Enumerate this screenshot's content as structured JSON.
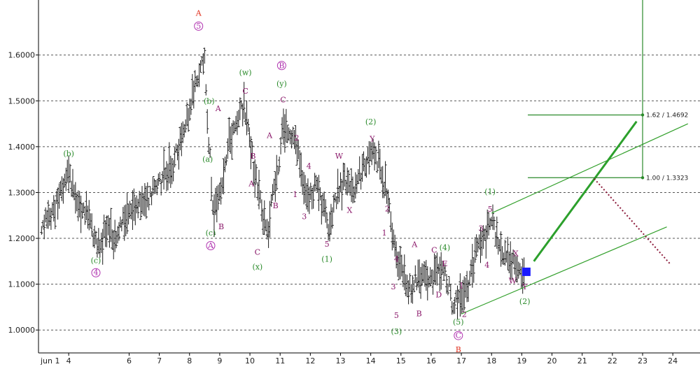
{
  "colors": {
    "price": "#1a1a1a",
    "grid": "#555555",
    "channel": "#33a02c",
    "projection": "#2ca02c",
    "bear_projection": "#8b1a3a",
    "fib": "#2a8a2a",
    "marker": "#1a1aff",
    "label_purple": "#8b1a6b",
    "label_green": "#2a8a2a",
    "label_red": "#e0301e",
    "label_circle": "#b033b0"
  },
  "chart_data": {
    "type": "ohlc",
    "ylim": [
      0.95,
      1.72
    ],
    "yticks": [
      "1.0000",
      "1.1000",
      "1.2000",
      "1.3000",
      "1.4000",
      "1.5000",
      "1.6000"
    ],
    "ytick_values": [
      1.0,
      1.1,
      1.2,
      1.3,
      1.4,
      1.5,
      1.6
    ],
    "xlim": [
      2003.0,
      2024.9
    ],
    "xticks": [
      "4",
      "6",
      "7",
      "8",
      "9",
      "10",
      "11",
      "12",
      "13",
      "14",
      "15",
      "16",
      "17",
      "18",
      "19",
      "20",
      "21",
      "22",
      "23",
      "24"
    ],
    "xtick_values": [
      2004,
      2006,
      2007,
      2008,
      2009,
      2010,
      2011,
      2012,
      2013,
      2014,
      2015,
      2016,
      2017,
      2018,
      2019,
      2020,
      2021,
      2022,
      2023,
      2024
    ],
    "x_start_label": "jun 1",
    "price_path": [
      [
        2003.1,
        1.22
      ],
      [
        2003.5,
        1.26
      ],
      [
        2004.0,
        1.35
      ],
      [
        2004.2,
        1.29
      ],
      [
        2004.5,
        1.26
      ],
      [
        2004.8,
        1.22
      ],
      [
        2005.0,
        1.18
      ],
      [
        2005.3,
        1.23
      ],
      [
        2005.6,
        1.19
      ],
      [
        2005.8,
        1.24
      ],
      [
        2006.2,
        1.27
      ],
      [
        2006.6,
        1.28
      ],
      [
        2007.0,
        1.32
      ],
      [
        2007.5,
        1.37
      ],
      [
        2007.9,
        1.45
      ],
      [
        2008.2,
        1.55
      ],
      [
        2008.5,
        1.59
      ],
      [
        2008.6,
        1.45
      ],
      [
        2008.8,
        1.25
      ],
      [
        2009.0,
        1.3
      ],
      [
        2009.2,
        1.38
      ],
      [
        2009.5,
        1.45
      ],
      [
        2009.8,
        1.49
      ],
      [
        2010.0,
        1.4
      ],
      [
        2010.2,
        1.33
      ],
      [
        2010.4,
        1.26
      ],
      [
        2010.6,
        1.21
      ],
      [
        2010.8,
        1.32
      ],
      [
        2011.0,
        1.38
      ],
      [
        2011.1,
        1.45
      ],
      [
        2011.4,
        1.43
      ],
      [
        2011.7,
        1.35
      ],
      [
        2011.9,
        1.28
      ],
      [
        2012.2,
        1.32
      ],
      [
        2012.4,
        1.27
      ],
      [
        2012.6,
        1.23
      ],
      [
        2012.9,
        1.3
      ],
      [
        2013.2,
        1.33
      ],
      [
        2013.5,
        1.31
      ],
      [
        2013.8,
        1.36
      ],
      [
        2014.1,
        1.38
      ],
      [
        2014.3,
        1.37
      ],
      [
        2014.6,
        1.27
      ],
      [
        2014.8,
        1.18
      ],
      [
        2015.0,
        1.12
      ],
      [
        2015.3,
        1.09
      ],
      [
        2015.6,
        1.12
      ],
      [
        2015.9,
        1.1
      ],
      [
        2016.2,
        1.12
      ],
      [
        2016.4,
        1.14
      ],
      [
        2016.7,
        1.06
      ],
      [
        2016.9,
        1.06
      ],
      [
        2017.2,
        1.1
      ],
      [
        2017.5,
        1.17
      ],
      [
        2017.8,
        1.21
      ],
      [
        2018.0,
        1.24
      ],
      [
        2018.3,
        1.17
      ],
      [
        2018.6,
        1.15
      ],
      [
        2018.9,
        1.13
      ],
      [
        2019.1,
        1.12
      ]
    ],
    "channel_upper": [
      [
        2018.0,
        1.255
      ],
      [
        2024.5,
        1.45
      ]
    ],
    "channel_lower": [
      [
        2017.0,
        1.035
      ],
      [
        2023.8,
        1.225
      ]
    ],
    "projection_up": [
      [
        2019.4,
        1.15
      ],
      [
        2022.8,
        1.455
      ]
    ],
    "projection_down": [
      [
        2021.4,
        1.33
      ],
      [
        2023.9,
        1.145
      ]
    ],
    "marker": [
      2019.15,
      1.127
    ],
    "fib_vertical": [
      [
        2023.0,
        1.33
      ],
      [
        2023.0,
        1.72
      ]
    ],
    "fib_levels": [
      {
        "label": "1.62 / 1.4692",
        "value": 1.4692
      },
      {
        "label": "1.00 / 1.3323",
        "value": 1.3323
      }
    ],
    "wave_labels": [
      {
        "t": "(b)",
        "x": 2004.0,
        "y": 1.385,
        "c": "green",
        "s": "plain"
      },
      {
        "t": "(c)",
        "x": 2004.9,
        "y": 1.152,
        "c": "green",
        "s": "plain"
      },
      {
        "t": "4",
        "x": 2004.9,
        "y": 1.125,
        "c": "purple",
        "s": "circle"
      },
      {
        "t": "A",
        "x": 2008.3,
        "y": 1.692,
        "c": "red",
        "s": "plain"
      },
      {
        "t": "5",
        "x": 2008.3,
        "y": 1.663,
        "c": "purple",
        "s": "circle"
      },
      {
        "t": "(b)",
        "x": 2008.65,
        "y": 1.5,
        "c": "green",
        "s": "plain"
      },
      {
        "t": "A",
        "x": 2008.95,
        "y": 1.484,
        "c": "purple",
        "s": "plain"
      },
      {
        "t": "(a)",
        "x": 2008.6,
        "y": 1.373,
        "c": "green",
        "s": "plain"
      },
      {
        "t": "B",
        "x": 2009.05,
        "y": 1.226,
        "c": "purple",
        "s": "plain"
      },
      {
        "t": "(c)",
        "x": 2008.7,
        "y": 1.212,
        "c": "green",
        "s": "plain"
      },
      {
        "t": "A",
        "x": 2008.7,
        "y": 1.184,
        "c": "purple",
        "s": "circle"
      },
      {
        "t": "(w)",
        "x": 2009.85,
        "y": 1.562,
        "c": "green",
        "s": "plain"
      },
      {
        "t": "C",
        "x": 2009.85,
        "y": 1.522,
        "c": "purple",
        "s": "plain"
      },
      {
        "t": "B",
        "x": 2010.1,
        "y": 1.38,
        "c": "purple",
        "s": "plain"
      },
      {
        "t": "A",
        "x": 2010.05,
        "y": 1.32,
        "c": "purple",
        "s": "plain"
      },
      {
        "t": "C",
        "x": 2010.25,
        "y": 1.17,
        "c": "purple",
        "s": "plain"
      },
      {
        "t": "(x)",
        "x": 2010.25,
        "y": 1.138,
        "c": "green",
        "s": "plain"
      },
      {
        "t": "B",
        "x": 2011.05,
        "y": 1.577,
        "c": "purple",
        "s": "circle"
      },
      {
        "t": "(y)",
        "x": 2011.05,
        "y": 1.538,
        "c": "green",
        "s": "plain"
      },
      {
        "t": "C",
        "x": 2011.1,
        "y": 1.503,
        "c": "purple",
        "s": "plain"
      },
      {
        "t": "A",
        "x": 2010.65,
        "y": 1.425,
        "c": "purple",
        "s": "plain"
      },
      {
        "t": "2",
        "x": 2011.55,
        "y": 1.42,
        "c": "purple",
        "s": "plain"
      },
      {
        "t": "B",
        "x": 2010.85,
        "y": 1.272,
        "c": "purple",
        "s": "plain"
      },
      {
        "t": "4",
        "x": 2011.95,
        "y": 1.358,
        "c": "purple",
        "s": "plain"
      },
      {
        "t": "1",
        "x": 2011.5,
        "y": 1.296,
        "c": "purple",
        "s": "plain"
      },
      {
        "t": "3",
        "x": 2011.8,
        "y": 1.248,
        "c": "purple",
        "s": "plain"
      },
      {
        "t": "5",
        "x": 2012.55,
        "y": 1.188,
        "c": "purple",
        "s": "plain"
      },
      {
        "t": "(1)",
        "x": 2012.55,
        "y": 1.155,
        "c": "green",
        "s": "plain"
      },
      {
        "t": "W",
        "x": 2012.95,
        "y": 1.38,
        "c": "purple",
        "s": "plain"
      },
      {
        "t": "X",
        "x": 2013.3,
        "y": 1.262,
        "c": "purple",
        "s": "plain"
      },
      {
        "t": "(2)",
        "x": 2014.0,
        "y": 1.455,
        "c": "green",
        "s": "plain"
      },
      {
        "t": "Y",
        "x": 2014.05,
        "y": 1.417,
        "c": "purple",
        "s": "plain"
      },
      {
        "t": "2",
        "x": 2014.55,
        "y": 1.265,
        "c": "purple",
        "s": "plain"
      },
      {
        "t": "1",
        "x": 2014.45,
        "y": 1.212,
        "c": "purple",
        "s": "plain"
      },
      {
        "t": "4",
        "x": 2014.85,
        "y": 1.155,
        "c": "purple",
        "s": "plain"
      },
      {
        "t": "3",
        "x": 2014.75,
        "y": 1.095,
        "c": "purple",
        "s": "plain"
      },
      {
        "t": "5",
        "x": 2014.85,
        "y": 1.032,
        "c": "purple",
        "s": "plain"
      },
      {
        "t": "(3)",
        "x": 2014.85,
        "y": 0.997,
        "c": "green",
        "s": "plain"
      },
      {
        "t": "A",
        "x": 2015.45,
        "y": 1.187,
        "c": "purple",
        "s": "plain"
      },
      {
        "t": "B",
        "x": 2015.6,
        "y": 1.036,
        "c": "purple",
        "s": "plain"
      },
      {
        "t": "C",
        "x": 2016.1,
        "y": 1.175,
        "c": "purple",
        "s": "plain"
      },
      {
        "t": "(4)",
        "x": 2016.45,
        "y": 1.18,
        "c": "green",
        "s": "plain"
      },
      {
        "t": "E",
        "x": 2016.45,
        "y": 1.145,
        "c": "purple",
        "s": "plain"
      },
      {
        "t": "D",
        "x": 2016.25,
        "y": 1.077,
        "c": "purple",
        "s": "plain"
      },
      {
        "t": "1",
        "x": 2017.0,
        "y": 1.097,
        "c": "purple",
        "s": "plain"
      },
      {
        "t": "2",
        "x": 2017.1,
        "y": 1.035,
        "c": "purple",
        "s": "plain"
      },
      {
        "t": "(5)",
        "x": 2016.9,
        "y": 1.018,
        "c": "green",
        "s": "plain"
      },
      {
        "t": "C",
        "x": 2016.9,
        "y": 0.988,
        "c": "purple",
        "s": "circle"
      },
      {
        "t": "B",
        "x": 2016.9,
        "y": 0.958,
        "c": "red",
        "s": "plain"
      },
      {
        "t": "3",
        "x": 2017.65,
        "y": 1.222,
        "c": "purple",
        "s": "plain"
      },
      {
        "t": "4",
        "x": 2017.85,
        "y": 1.142,
        "c": "purple",
        "s": "plain"
      },
      {
        "t": "(1)",
        "x": 2017.95,
        "y": 1.302,
        "c": "green",
        "s": "plain"
      },
      {
        "t": "5",
        "x": 2017.95,
        "y": 1.264,
        "c": "purple",
        "s": "plain"
      },
      {
        "t": "X",
        "x": 2018.8,
        "y": 1.167,
        "c": "purple",
        "s": "plain"
      },
      {
        "t": "W",
        "x": 2018.7,
        "y": 1.108,
        "c": "purple",
        "s": "plain"
      },
      {
        "t": "Y",
        "x": 2019.1,
        "y": 1.095,
        "c": "purple",
        "s": "plain"
      },
      {
        "t": "(2)",
        "x": 2019.1,
        "y": 1.063,
        "c": "green",
        "s": "plain"
      }
    ]
  }
}
